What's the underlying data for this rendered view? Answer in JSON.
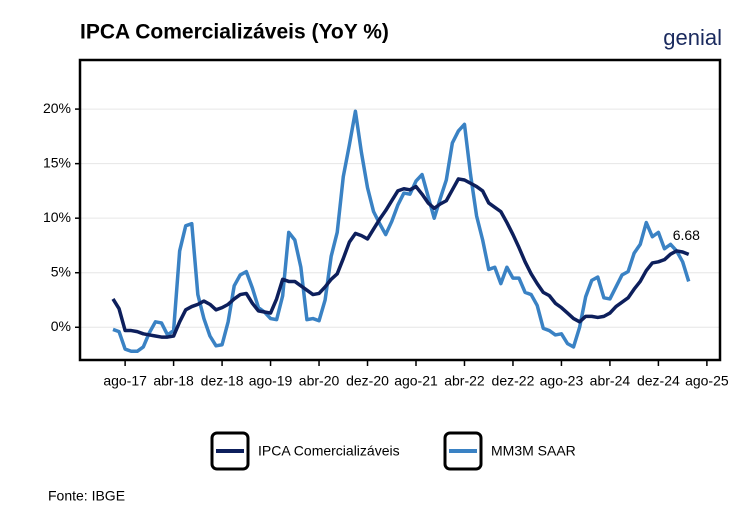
{
  "chart_data": {
    "type": "line",
    "title": "IPCA Comercializáveis (YoY %)",
    "logo": "genial",
    "source": "Fonte: IBGE",
    "annotation": "6.68",
    "categories": [
      null,
      null,
      "ago-17",
      null,
      null,
      null,
      null,
      null,
      null,
      null,
      "abr-18",
      null,
      null,
      null,
      null,
      null,
      null,
      null,
      "dez-18",
      null,
      null,
      null,
      null,
      null,
      null,
      null,
      "ago-19",
      null,
      null,
      null,
      null,
      null,
      null,
      null,
      "abr-20",
      null,
      null,
      null,
      null,
      null,
      null,
      null,
      "dez-20",
      null,
      null,
      null,
      null,
      null,
      null,
      null,
      "ago-21",
      null,
      null,
      null,
      null,
      null,
      null,
      null,
      "abr-22",
      null,
      null,
      null,
      null,
      null,
      null,
      null,
      "dez-22",
      null,
      null,
      null,
      null,
      null,
      null,
      null,
      "ago-23",
      null,
      null,
      null,
      null,
      null,
      null,
      null,
      "abr-24",
      null,
      null,
      null,
      null,
      null,
      null,
      null,
      "dez-24",
      null,
      null,
      null,
      null,
      null,
      null,
      null,
      "ago-25"
    ],
    "series": [
      {
        "name": "IPCA Comercializáveis",
        "color": "#0d1f5c",
        "values": [
          2.6,
          1.7,
          -0.3,
          -0.3,
          -0.4,
          -0.6,
          -0.7,
          -0.8,
          -0.9,
          -0.9,
          -0.8,
          0.5,
          1.6,
          1.9,
          2.1,
          2.4,
          2.1,
          1.6,
          1.8,
          2.1,
          2.6,
          3.0,
          3.1,
          2.2,
          1.5,
          1.4,
          1.3,
          2.6,
          4.4,
          4.2,
          4.2,
          3.8,
          3.4,
          3.0,
          3.1,
          3.7,
          4.4,
          4.9,
          6.3,
          7.8,
          8.6,
          8.4,
          8.1,
          9.0,
          9.9,
          10.7,
          11.6,
          12.5,
          12.7,
          12.6,
          12.9,
          12.2,
          11.4,
          10.9,
          11.3,
          11.6,
          12.6,
          13.6,
          13.5,
          13.2,
          12.9,
          12.5,
          11.4,
          11.0,
          10.6,
          9.6,
          8.5,
          7.3,
          6.0,
          4.9,
          4.0,
          3.2,
          2.9,
          2.2,
          1.8,
          1.3,
          0.8,
          0.5,
          1.0,
          1.0,
          0.9,
          1.0,
          1.3,
          1.9,
          2.3,
          2.7,
          3.5,
          4.2,
          5.2,
          5.9,
          6.0,
          6.2,
          6.7,
          7.0,
          6.9,
          6.68,
          null,
          null,
          null
        ]
      },
      {
        "name": "MM3M SAAR",
        "color": "#3a82c4",
        "values": [
          -0.2,
          -0.4,
          -2.0,
          -2.2,
          -2.2,
          -1.8,
          -0.5,
          0.5,
          0.4,
          -0.7,
          -0.3,
          7.0,
          9.3,
          9.5,
          3.0,
          0.8,
          -0.8,
          -1.7,
          -1.6,
          0.5,
          3.8,
          4.8,
          5.1,
          3.6,
          1.8,
          1.4,
          0.8,
          0.7,
          2.9,
          8.7,
          8.0,
          5.5,
          0.7,
          0.8,
          0.6,
          2.5,
          6.5,
          8.7,
          13.8,
          16.7,
          19.8,
          16.0,
          12.8,
          10.6,
          9.5,
          8.5,
          9.7,
          11.2,
          12.3,
          12.2,
          13.4,
          14.0,
          12.0,
          10.0,
          11.8,
          13.5,
          16.9,
          18.0,
          18.6,
          14.0,
          10.2,
          8.0,
          5.3,
          5.5,
          4.0,
          5.5,
          4.5,
          4.5,
          3.2,
          3.0,
          2.0,
          -0.1,
          -0.3,
          -0.7,
          -0.6,
          -1.5,
          -1.8,
          0.0,
          2.8,
          4.3,
          4.6,
          2.7,
          2.6,
          3.7,
          4.8,
          5.1,
          6.8,
          7.6,
          9.6,
          8.3,
          8.7,
          7.2,
          7.6,
          7.0,
          6.0,
          4.2,
          null,
          null,
          null
        ]
      }
    ],
    "ylim": [
      -3,
      24.5
    ],
    "yticks": [
      {
        "value": 0,
        "label": "0%"
      },
      {
        "value": 5,
        "label": "5%"
      },
      {
        "value": 10,
        "label": "10%"
      },
      {
        "value": 15,
        "label": "15%"
      },
      {
        "value": 20,
        "label": "20%"
      }
    ],
    "grid": true,
    "legend": "bottom"
  }
}
